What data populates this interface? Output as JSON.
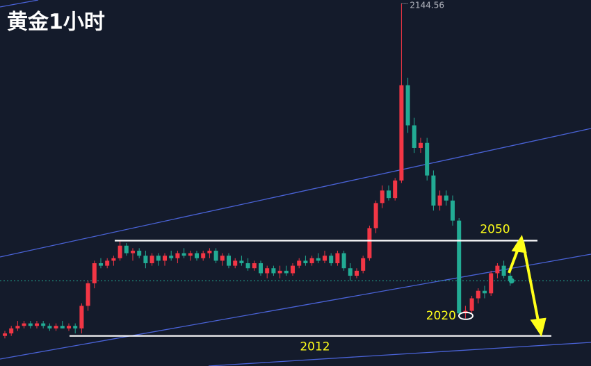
{
  "chart_data": {
    "type": "candlestick",
    "title": "黄金1小时",
    "open": [
      2012,
      2013,
      2015,
      2016,
      2017,
      2016,
      2017,
      2016,
      2015,
      2016,
      2015,
      2016,
      2015,
      2024,
      2033,
      2041,
      2040,
      2042,
      2043,
      2048,
      2045,
      2046,
      2044,
      2041,
      2044,
      2042,
      2044,
      2043,
      2045,
      2044,
      2045,
      2043,
      2045,
      2046,
      2042,
      2044,
      2040,
      2042,
      2041,
      2039,
      2041,
      2037,
      2039,
      2037,
      2038,
      2037,
      2040,
      2042,
      2041,
      2043,
      2042,
      2044,
      2041,
      2045,
      2039,
      2036,
      2038,
      2043,
      2055,
      2065,
      2070,
      2067,
      2074,
      2112,
      2096,
      2087,
      2089,
      2076,
      2064,
      2068,
      2066,
      2058,
      2021,
      2022,
      2027,
      2030,
      2029,
      2037,
      2040,
      2036
    ],
    "high": [
      2014,
      2016,
      2018,
      2018,
      2018,
      2018,
      2018,
      2017,
      2017,
      2018,
      2017,
      2017,
      2025,
      2034,
      2042,
      2043,
      2043,
      2044,
      2050,
      2049,
      2047,
      2047,
      2046,
      2045,
      2045,
      2045,
      2046,
      2046,
      2047,
      2046,
      2046,
      2046,
      2047,
      2047,
      2045,
      2045,
      2043,
      2044,
      2043,
      2042,
      2042,
      2040,
      2040,
      2040,
      2040,
      2041,
      2043,
      2044,
      2044,
      2045,
      2046,
      2045,
      2046,
      2046,
      2041,
      2039,
      2044,
      2056,
      2066,
      2072,
      2072,
      2075,
      2144.56,
      2115,
      2099,
      2091,
      2091,
      2078,
      2070,
      2070,
      2068,
      2059,
      2024,
      2028,
      2031,
      2032,
      2038,
      2041,
      2042,
      2039
    ],
    "low": [
      2011,
      2012,
      2014,
      2015,
      2015,
      2015,
      2015,
      2014,
      2014,
      2015,
      2014,
      2013,
      2013,
      2022,
      2031,
      2039,
      2039,
      2040,
      2042,
      2044,
      2042,
      2043,
      2039,
      2040,
      2040,
      2040,
      2042,
      2041,
      2043,
      2042,
      2042,
      2042,
      2043,
      2041,
      2040,
      2039,
      2039,
      2040,
      2038,
      2038,
      2036,
      2035,
      2036,
      2035,
      2036,
      2036,
      2039,
      2040,
      2040,
      2041,
      2041,
      2040,
      2040,
      2038,
      2034,
      2035,
      2037,
      2042,
      2053,
      2063,
      2066,
      2066,
      2073,
      2093,
      2085,
      2085,
      2074,
      2062,
      2062,
      2064,
      2056,
      2020,
      2019,
      2021,
      2025,
      2027,
      2028,
      2035,
      2035,
      2032
    ],
    "close": [
      2013,
      2015,
      2016,
      2017,
      2016,
      2017,
      2016,
      2015,
      2016,
      2015,
      2016,
      2015,
      2024,
      2033,
      2041,
      2040,
      2042,
      2043,
      2048,
      2045,
      2046,
      2044,
      2041,
      2044,
      2042,
      2044,
      2043,
      2045,
      2044,
      2045,
      2043,
      2045,
      2046,
      2042,
      2044,
      2040,
      2042,
      2041,
      2039,
      2041,
      2037,
      2039,
      2037,
      2038,
      2037,
      2040,
      2042,
      2041,
      2043,
      2042,
      2044,
      2041,
      2045,
      2039,
      2036,
      2038,
      2043,
      2055,
      2065,
      2070,
      2067,
      2074,
      2112,
      2096,
      2087,
      2089,
      2076,
      2064,
      2068,
      2066,
      2058,
      2021,
      2022,
      2027,
      2030,
      2029,
      2037,
      2040,
      2036,
      2034
    ],
    "up_color": "#f23645",
    "down_color": "#22ab94",
    "ylim": [
      2000,
      2146
    ],
    "levels": [
      2050,
      2012
    ],
    "low_label": 2020
  }
}
